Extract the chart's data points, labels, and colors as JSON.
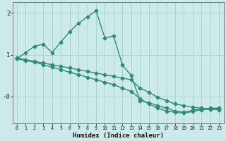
{
  "x": [
    0,
    1,
    2,
    3,
    4,
    5,
    6,
    7,
    8,
    9,
    10,
    11,
    12,
    13,
    14,
    15,
    16,
    17,
    18,
    19,
    20,
    21,
    22,
    23
  ],
  "line_jagged": [
    0.9,
    1.05,
    1.2,
    1.25,
    1.05,
    1.3,
    1.55,
    1.75,
    1.9,
    2.05,
    1.4,
    1.45,
    0.75,
    0.5,
    -0.1,
    -0.15,
    -0.22,
    -0.28,
    -0.35,
    -0.38,
    -0.33,
    -0.3,
    -0.28,
    -0.28
  ],
  "line_reg1": [
    0.92,
    0.88,
    0.84,
    0.8,
    0.76,
    0.72,
    0.68,
    0.64,
    0.6,
    0.56,
    0.52,
    0.48,
    0.44,
    0.4,
    0.2,
    0.1,
    -0.02,
    -0.1,
    -0.18,
    -0.22,
    -0.26,
    -0.28,
    -0.3,
    -0.32
  ],
  "line_reg2": [
    0.9,
    0.86,
    0.82,
    0.76,
    0.7,
    0.64,
    0.58,
    0.52,
    0.46,
    0.4,
    0.34,
    0.28,
    0.2,
    0.12,
    -0.05,
    -0.18,
    -0.28,
    -0.35,
    -0.38,
    -0.4,
    -0.36,
    -0.32,
    -0.3,
    -0.3
  ],
  "line_color": "#2e8b7a",
  "bg_color": "#cceae8",
  "grid_color": "#aad4d0",
  "xlabel": "Humidex (Indice chaleur)",
  "ylim": [
    -0.65,
    2.25
  ],
  "xlim": [
    -0.5,
    23.5
  ],
  "figsize": [
    3.2,
    2.0
  ],
  "dpi": 100,
  "marker": "D",
  "marker_size": 2.5,
  "linewidth": 1.0
}
